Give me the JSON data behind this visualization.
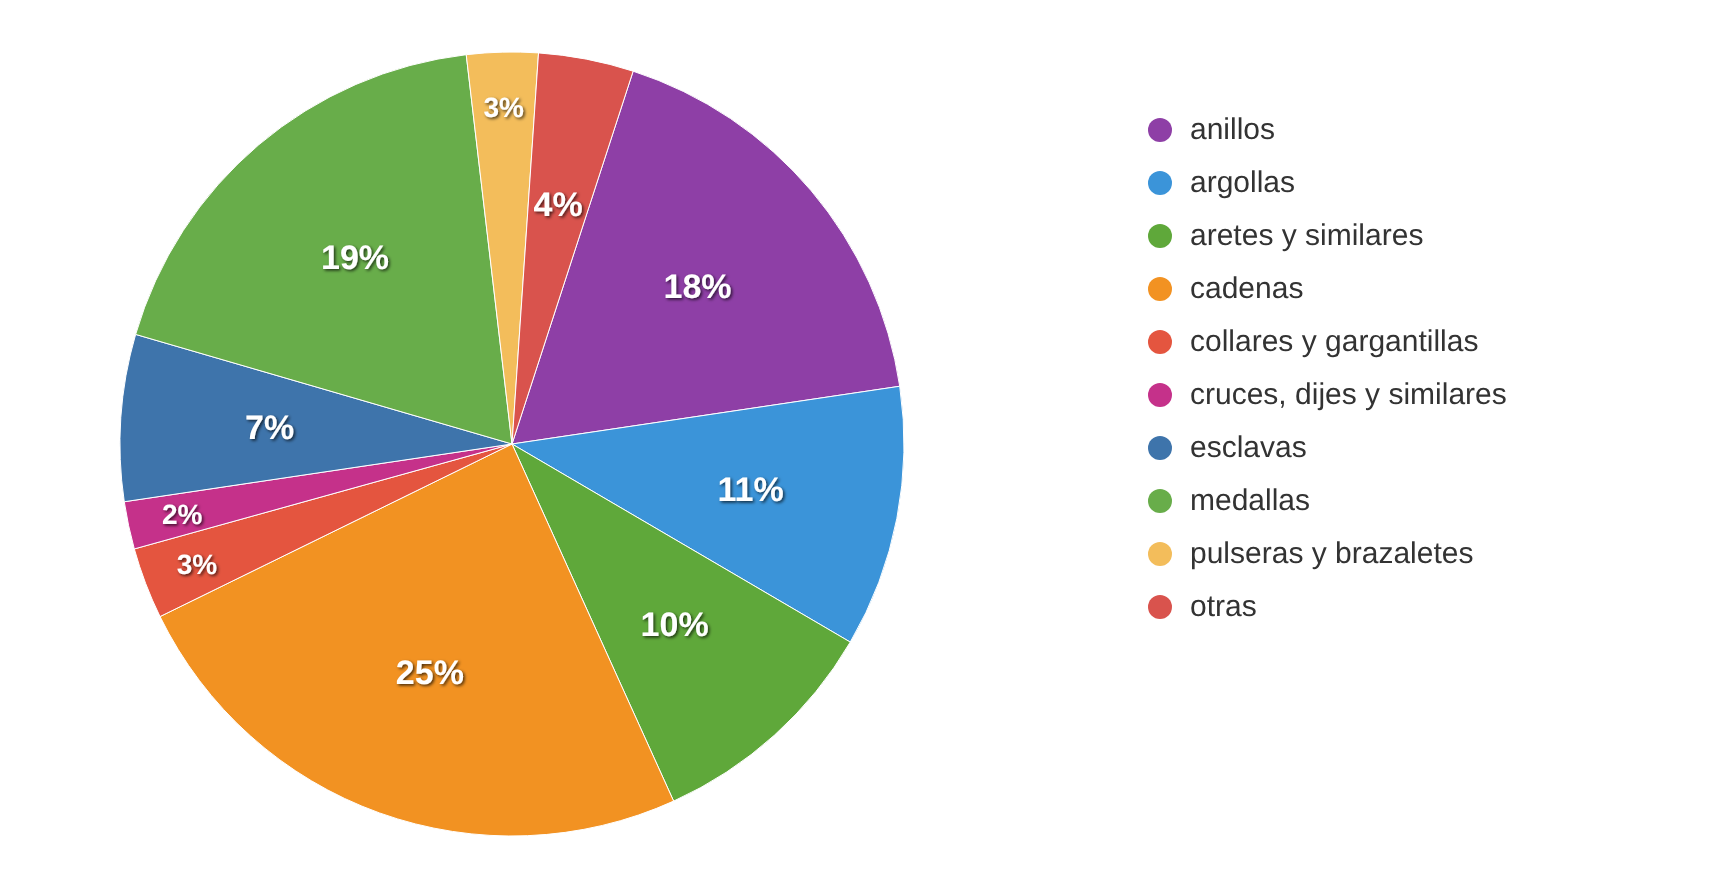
{
  "chart_data": {
    "type": "pie",
    "categories": [
      "anillos",
      "argollas",
      "aretes y similares",
      "cadenas",
      "collares y gargantillas",
      "cruces, dijes y similares",
      "esclavas",
      "medallas",
      "pulseras y brazaletes",
      "otras"
    ],
    "values": [
      18,
      11,
      10,
      25,
      3,
      2,
      7,
      19,
      3,
      4
    ],
    "colors": [
      "#8e3fa6",
      "#3b94d9",
      "#5fa83a",
      "#f29222",
      "#e4553f",
      "#c5318a",
      "#3e74ab",
      "#68ad4a",
      "#f3bd5b",
      "#d9534d"
    ],
    "value_labels": [
      "18%",
      "11%",
      "10%",
      "25%",
      "3%",
      "2%",
      "7%",
      "19%",
      "3%",
      "4%"
    ],
    "legend": "right"
  }
}
